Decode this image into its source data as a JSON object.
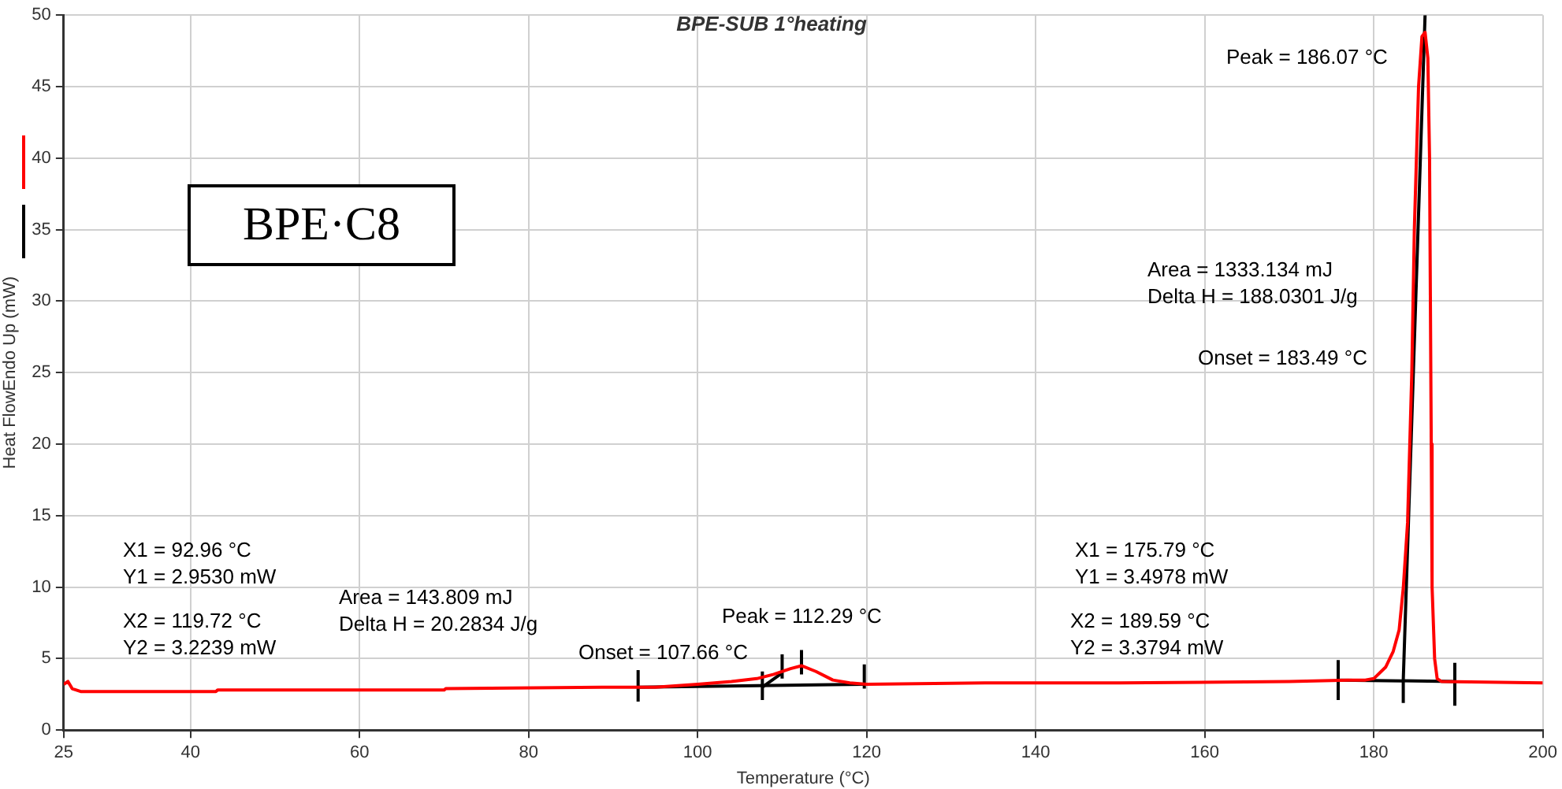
{
  "chart_data": {
    "type": "line",
    "title": "BPE-SUB 1°heating",
    "xlabel": "Temperature (°C)",
    "ylabel": "Heat FlowEndo Up (mW)",
    "xlim": [
      25,
      200
    ],
    "xticks": [
      25,
      40,
      60,
      80,
      100,
      120,
      140,
      160,
      180,
      200
    ],
    "ylim": [
      0,
      50
    ],
    "yticks": [
      0,
      5,
      10,
      15,
      20,
      25,
      30,
      35,
      40,
      45,
      50
    ],
    "grid": true,
    "legend": false,
    "marker": "none",
    "line_style": "solid",
    "series": [
      {
        "color": "#ff0000",
        "x": [
          25,
          25.5,
          26,
          27,
          43,
          43.2,
          70,
          70.2,
          90,
          92,
          95,
          100,
          104,
          107,
          109,
          111,
          112.29,
          114,
          116,
          118,
          120,
          134,
          135,
          150,
          170,
          177,
          179,
          180,
          181.4,
          182.3,
          183,
          183.5,
          184,
          184.5,
          184.8,
          185.3,
          185.7,
          186.07,
          186.4,
          186.6,
          186.8,
          186.9,
          187.2,
          187.5,
          188,
          200
        ],
        "values": [
          3.2,
          3.4,
          2.9,
          2.7,
          2.7,
          2.8,
          2.8,
          2.9,
          3.0,
          3.0,
          3.0,
          3.2,
          3.4,
          3.6,
          3.9,
          4.3,
          4.5,
          4.1,
          3.5,
          3.3,
          3.2,
          3.3,
          3.3,
          3.3,
          3.4,
          3.5,
          3.5,
          3.6,
          4.4,
          5.5,
          7,
          10,
          14.5,
          25,
          35,
          45,
          48.5,
          48.8,
          47,
          40,
          20,
          10,
          5,
          3.6,
          3.4,
          3.3
        ]
      },
      {
        "color": "#000000",
        "x": [
          92.96,
          119.72
        ],
        "values": [
          3.0,
          3.2
        ]
      },
      {
        "color": "#000000",
        "x": [
          107.66,
          110
        ],
        "values": [
          3.0,
          4.0
        ]
      },
      {
        "color": "#000000",
        "x": [
          175.79,
          189.59
        ],
        "values": [
          3.5,
          3.4
        ]
      },
      {
        "color": "#000000",
        "x": [
          183.49,
          183.49,
          186.07
        ],
        "values": [
          1.9,
          3.5,
          50
        ]
      },
      {
        "color": "#000000",
        "x": [
          92.96,
          92.96
        ],
        "values": [
          2.0,
          4.2
        ]
      },
      {
        "color": "#000000",
        "x": [
          107.66,
          107.66
        ],
        "values": [
          2.1,
          4.1
        ]
      },
      {
        "color": "#000000",
        "x": [
          110,
          110
        ],
        "values": [
          3.6,
          5.3
        ]
      },
      {
        "color": "#000000",
        "x": [
          112.29,
          112.29
        ],
        "values": [
          3.9,
          5.6
        ]
      },
      {
        "color": "#000000",
        "x": [
          119.72,
          119.72
        ],
        "values": [
          2.9,
          4.6
        ]
      },
      {
        "color": "#000000",
        "x": [
          175.79,
          175.79
        ],
        "values": [
          2.1,
          4.9
        ]
      },
      {
        "color": "#000000",
        "x": [
          189.59,
          189.59
        ],
        "values": [
          1.7,
          4.7
        ]
      }
    ],
    "annotations": [
      "BPE·C8",
      "Peak = 186.07 °C",
      "Area = 1333.134 mJ",
      "Delta H = 188.0301 J/g",
      "Onset = 183.49 °C",
      "X1 = 175.79 °C",
      "Y1 = 3.4978 mW",
      "X2 = 189.59 °C",
      "Y2 = 3.3794 mW",
      "X1 = 92.96 °C",
      "Y1 = 2.9530 mW",
      "X2 = 119.72 °C",
      "Y2 = 3.2239 mW",
      "Area = 143.809 mJ",
      "Delta H = 20.2834 J/g",
      "Peak = 112.29 °C",
      "Onset = 107.66 °C"
    ]
  }
}
